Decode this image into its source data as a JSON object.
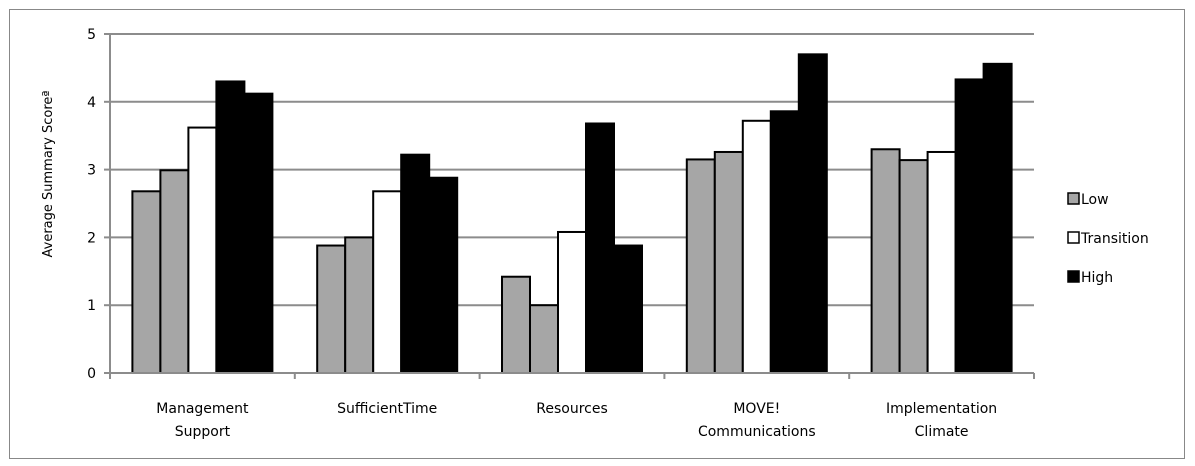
{
  "chart_data": {
    "type": "bar",
    "title": "",
    "ylabel": "Average Summary Scoreª",
    "xlabel": "",
    "ylim": [
      0,
      5
    ],
    "yticks": [
      0,
      1,
      2,
      3,
      4,
      5
    ],
    "grid": true,
    "legend_position": "right",
    "categories": [
      [
        "Management",
        "Support"
      ],
      [
        "SufficientTime"
      ],
      [
        "Resources"
      ],
      [
        "MOVE!",
        "Communications"
      ],
      [
        "Implementation",
        "Climate"
      ]
    ],
    "legend": [
      {
        "label": "Low",
        "color": "#a6a6a6"
      },
      {
        "label": "Transition",
        "color": "#ffffff"
      },
      {
        "label": "High",
        "color": "#000000"
      }
    ],
    "groups": [
      {
        "bars": [
          {
            "value": 2.68,
            "level": "Low"
          },
          {
            "value": 2.99,
            "level": "Low"
          },
          {
            "value": 3.62,
            "level": "Transition"
          },
          {
            "value": 4.3,
            "level": "High"
          },
          {
            "value": 4.12,
            "level": "High"
          }
        ]
      },
      {
        "bars": [
          {
            "value": 1.88,
            "level": "Low"
          },
          {
            "value": 2.0,
            "level": "Low"
          },
          {
            "value": 2.68,
            "level": "Transition"
          },
          {
            "value": 3.22,
            "level": "High"
          },
          {
            "value": 2.88,
            "level": "High"
          }
        ]
      },
      {
        "bars": [
          {
            "value": 1.42,
            "level": "Low"
          },
          {
            "value": 1.0,
            "level": "Low"
          },
          {
            "value": 2.08,
            "level": "Transition"
          },
          {
            "value": 3.68,
            "level": "High"
          },
          {
            "value": 1.88,
            "level": "High"
          }
        ]
      },
      {
        "bars": [
          {
            "value": 3.15,
            "level": "Low"
          },
          {
            "value": 3.26,
            "level": "Low"
          },
          {
            "value": 3.72,
            "level": "Transition"
          },
          {
            "value": 3.86,
            "level": "High"
          },
          {
            "value": 4.7,
            "level": "High"
          }
        ]
      },
      {
        "bars": [
          {
            "value": 3.3,
            "level": "Low"
          },
          {
            "value": 3.14,
            "level": "Low"
          },
          {
            "value": 3.26,
            "level": "Transition"
          },
          {
            "value": 4.33,
            "level": "High"
          },
          {
            "value": 4.56,
            "level": "High"
          }
        ]
      }
    ]
  }
}
